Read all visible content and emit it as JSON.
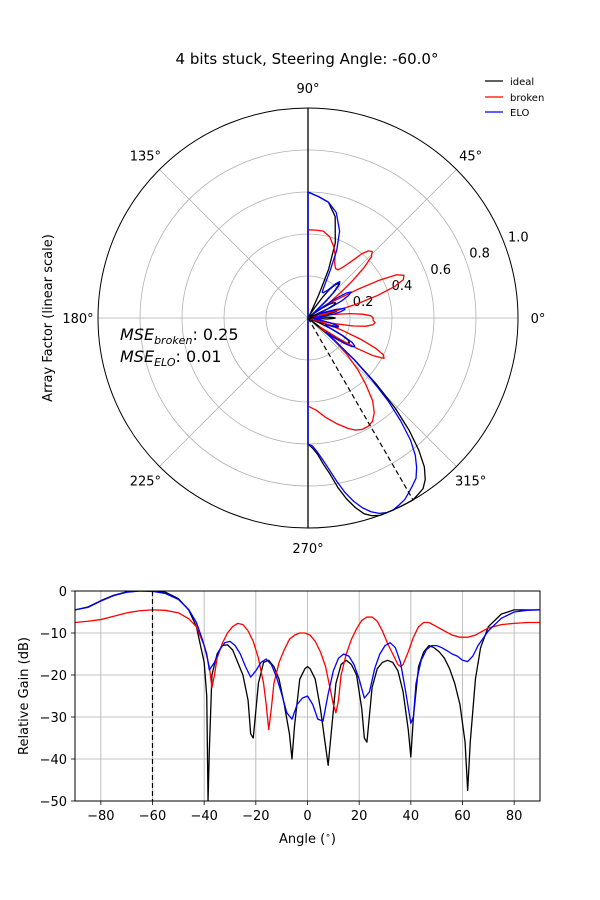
{
  "title": "4 bits stuck, Steering Angle: -60.0°",
  "legend": {
    "placement": "top-right",
    "entries": [
      {
        "label": "ideal",
        "color": "#000000"
      },
      {
        "label": "broken",
        "color": "#ff0000"
      },
      {
        "label": "ELO",
        "color": "#0000ff"
      }
    ]
  },
  "mse": {
    "broken_label": "MSE",
    "broken_sub": "broken",
    "broken_value": ": 0.25",
    "elo_label": "MSE",
    "elo_sub": "ELO",
    "elo_value": ": 0.01"
  },
  "chart_data": [
    {
      "type": "line",
      "subtype": "polar",
      "ylabel": "Array Factor (linear scale)",
      "angle_ticks": [
        "0°",
        "45°",
        "90°",
        "135°",
        "180°",
        "225°",
        "270°",
        "315°"
      ],
      "radial_ticks": [
        "0.2",
        "0.4",
        "0.6",
        "0.8",
        "1.0"
      ],
      "rlim": [
        0,
        1.0
      ],
      "steering_angle_deg": -60,
      "series": [
        {
          "name": "ideal",
          "color": "#000000",
          "theta": [
            -90,
            -88,
            -86,
            -84,
            -82,
            -80,
            -78,
            -76,
            -74,
            -72,
            -70,
            -68,
            -66,
            -64,
            -62,
            -60,
            -58,
            -56,
            -54,
            -52,
            -50,
            -48,
            -46,
            -44,
            -42,
            -40,
            -38.5,
            -37,
            -35,
            -33,
            -31,
            -29,
            -27,
            -25,
            -23,
            -21,
            -19,
            -17,
            -15,
            -13,
            -11,
            -9,
            -7,
            -6,
            -5,
            -3,
            -1,
            0,
            1,
            3,
            5,
            7,
            8,
            9,
            11,
            13,
            15,
            17,
            19,
            21,
            22,
            23,
            25,
            27,
            29,
            31,
            33,
            35,
            37,
            39,
            41,
            43,
            45,
            47,
            49,
            51,
            53,
            55,
            57,
            59,
            61,
            62,
            63,
            65,
            67,
            70,
            75,
            80,
            85,
            90
          ],
          "r": [
            0.6,
            0.62,
            0.65,
            0.7,
            0.75,
            0.82,
            0.88,
            0.93,
            0.97,
            0.99,
            1.0,
            1.0,
            1.0,
            1.0,
            1.0,
            1.0,
            0.99,
            0.98,
            0.95,
            0.9,
            0.82,
            0.72,
            0.6,
            0.45,
            0.3,
            0.12,
            0.0,
            0.12,
            0.18,
            0.22,
            0.23,
            0.22,
            0.18,
            0.12,
            0.05,
            0.02,
            0.08,
            0.14,
            0.15,
            0.12,
            0.07,
            0.03,
            0.01,
            0.0,
            0.02,
            0.09,
            0.12,
            0.13,
            0.12,
            0.09,
            0.04,
            0.01,
            0.0,
            0.02,
            0.1,
            0.14,
            0.14,
            0.11,
            0.06,
            0.02,
            0.01,
            0.02,
            0.1,
            0.14,
            0.15,
            0.14,
            0.12,
            0.08,
            0.04,
            0.01,
            0.04,
            0.12,
            0.17,
            0.21,
            0.22,
            0.2,
            0.17,
            0.12,
            0.06,
            0.02,
            0.003,
            0.01,
            0.03,
            0.12,
            0.25,
            0.38,
            0.5,
            0.56,
            0.58,
            0.6
          ]
        },
        {
          "name": "broken",
          "color": "#ff0000",
          "theta": [
            -90,
            -85,
            -80,
            -75,
            -70,
            -67,
            -64,
            -61,
            -58,
            -55,
            -52,
            -49,
            -46,
            -43,
            -40,
            -38,
            -37,
            -36,
            -34,
            -32,
            -30,
            -28,
            -26,
            -24,
            -22,
            -20,
            -18,
            -16,
            -15,
            -14,
            -12,
            -10,
            -8,
            -6,
            -4,
            -2,
            0,
            2,
            4,
            6,
            8,
            10,
            11,
            12,
            14,
            16,
            18,
            20,
            22,
            24,
            26,
            28,
            30,
            32,
            34,
            35,
            36,
            38,
            40,
            42,
            44,
            46,
            48,
            50,
            52,
            55,
            58,
            61,
            64,
            67,
            70,
            75,
            80,
            85,
            90
          ],
          "r": [
            0.42,
            0.44,
            0.48,
            0.52,
            0.56,
            0.58,
            0.59,
            0.59,
            0.58,
            0.55,
            0.5,
            0.42,
            0.34,
            0.25,
            0.15,
            0.09,
            0.07,
            0.09,
            0.17,
            0.27,
            0.36,
            0.41,
            0.4,
            0.35,
            0.27,
            0.18,
            0.11,
            0.04,
            0.02,
            0.05,
            0.13,
            0.22,
            0.28,
            0.31,
            0.32,
            0.31,
            0.31,
            0.3,
            0.26,
            0.2,
            0.12,
            0.05,
            0.03,
            0.05,
            0.13,
            0.24,
            0.35,
            0.44,
            0.49,
            0.5,
            0.47,
            0.38,
            0.27,
            0.18,
            0.13,
            0.12,
            0.13,
            0.2,
            0.28,
            0.36,
            0.42,
            0.44,
            0.43,
            0.4,
            0.35,
            0.3,
            0.27,
            0.27,
            0.29,
            0.33,
            0.36,
            0.4,
            0.42,
            0.42,
            0.42
          ]
        },
        {
          "name": "ELO",
          "color": "#0000ff",
          "theta": [
            -90,
            -88,
            -86,
            -84,
            -82,
            -80,
            -78,
            -76,
            -74,
            -72,
            -70,
            -68,
            -66,
            -64,
            -62,
            -60,
            -58,
            -56,
            -54,
            -52,
            -50,
            -48,
            -46,
            -44,
            -42,
            -40,
            -38.5,
            -37,
            -35,
            -33,
            -31,
            -29,
            -27,
            -25,
            -23,
            -21,
            -19,
            -17,
            -15,
            -13,
            -11,
            -9,
            -7,
            -6,
            -5,
            -3,
            -1,
            0,
            1,
            3,
            5,
            7,
            8,
            9,
            11,
            13,
            15,
            17,
            19,
            21,
            22,
            23,
            25,
            27,
            29,
            31,
            33,
            35,
            37,
            39,
            41,
            43,
            45,
            47,
            49,
            51,
            53,
            55,
            57,
            59,
            61,
            62,
            63,
            65,
            67,
            70,
            75,
            80,
            85,
            90
          ],
          "r": [
            0.6,
            0.61,
            0.64,
            0.68,
            0.73,
            0.79,
            0.85,
            0.9,
            0.94,
            0.97,
            0.99,
            1.0,
            1.0,
            0.99,
            0.98,
            0.96,
            0.94,
            0.92,
            0.88,
            0.83,
            0.76,
            0.66,
            0.55,
            0.42,
            0.29,
            0.17,
            0.11,
            0.16,
            0.21,
            0.25,
            0.26,
            0.24,
            0.19,
            0.13,
            0.09,
            0.09,
            0.13,
            0.15,
            0.15,
            0.12,
            0.08,
            0.04,
            0.03,
            0.03,
            0.04,
            0.06,
            0.05,
            0.05,
            0.06,
            0.04,
            0.03,
            0.06,
            0.1,
            0.13,
            0.16,
            0.18,
            0.18,
            0.14,
            0.09,
            0.06,
            0.05,
            0.06,
            0.12,
            0.18,
            0.22,
            0.24,
            0.22,
            0.16,
            0.08,
            0.03,
            0.03,
            0.1,
            0.18,
            0.22,
            0.23,
            0.21,
            0.18,
            0.16,
            0.15,
            0.14,
            0.14,
            0.15,
            0.17,
            0.25,
            0.35,
            0.44,
            0.52,
            0.56,
            0.58,
            0.6
          ]
        }
      ]
    },
    {
      "type": "line",
      "xlabel": "Angle ($^\\circ$)",
      "ylabel": "Relative Gain (dB)",
      "xlim": [
        -90,
        90
      ],
      "ylim": [
        -50,
        0
      ],
      "xticks": [
        -80,
        -60,
        -40,
        -20,
        0,
        20,
        40,
        60,
        80
      ],
      "yticks": [
        0,
        -10,
        -20,
        -30,
        -40,
        -50
      ],
      "grid": true,
      "steering_angle_deg": -60,
      "series": [
        {
          "name": "ideal",
          "color": "#000000",
          "x": [
            -90,
            -85,
            -80,
            -75,
            -70,
            -65,
            -60,
            -55,
            -50,
            -46,
            -43,
            -40,
            -39,
            -38.5,
            -38,
            -37,
            -35,
            -33,
            -31,
            -29,
            -27,
            -25,
            -23,
            -22,
            -21,
            -19,
            -17,
            -15,
            -13,
            -11,
            -9,
            -7,
            -6,
            -5,
            -3,
            -1,
            0,
            1,
            3,
            5,
            7,
            8,
            9,
            11,
            13,
            15,
            17,
            19,
            21,
            22,
            23,
            25,
            27,
            29,
            31,
            33,
            35,
            37,
            39,
            40,
            41,
            43,
            45,
            47,
            49,
            51,
            53,
            55,
            57,
            59,
            61,
            62,
            63,
            65,
            67,
            70,
            75,
            80,
            85,
            90
          ],
          "y": [
            -4.5,
            -3.8,
            -2.3,
            -1.0,
            -0.2,
            0,
            0,
            -0.3,
            -1.8,
            -4.5,
            -8.5,
            -17,
            -25,
            -50,
            -38,
            -20,
            -15,
            -13,
            -12.8,
            -14,
            -17,
            -20,
            -26,
            -34,
            -35,
            -22,
            -17,
            -16.5,
            -18,
            -21,
            -27,
            -34,
            -40,
            -32,
            -21,
            -18.5,
            -18,
            -18.5,
            -21,
            -28,
            -37,
            -41.5,
            -35,
            -22,
            -17.5,
            -16.5,
            -17.5,
            -20,
            -28,
            -35,
            -36,
            -23,
            -18.5,
            -17,
            -16.5,
            -17,
            -19,
            -24,
            -33,
            -39.5,
            -30,
            -18,
            -14.5,
            -13,
            -13.5,
            -14.5,
            -16,
            -18.5,
            -22,
            -27,
            -36,
            -47.5,
            -36,
            -21,
            -13.5,
            -8.5,
            -5.5,
            -4.5,
            -4.5,
            -4.5
          ]
        },
        {
          "name": "broken",
          "color": "#ff0000",
          "x": [
            -90,
            -85,
            -80,
            -75,
            -70,
            -65,
            -60,
            -55,
            -50,
            -46,
            -43,
            -40,
            -38,
            -37,
            -36,
            -35,
            -33,
            -31,
            -29,
            -27,
            -25,
            -23,
            -21,
            -19,
            -17,
            -16,
            -15,
            -14,
            -13,
            -11,
            -9,
            -7,
            -5,
            -3,
            -1,
            1,
            3,
            5,
            7,
            9,
            10,
            11,
            12,
            13,
            15,
            17,
            19,
            21,
            23,
            25,
            27,
            29,
            31,
            33,
            35,
            36,
            37,
            39,
            41,
            43,
            45,
            47,
            50,
            53,
            56,
            59,
            62,
            65,
            70,
            75,
            80,
            85,
            90
          ],
          "y": [
            -7.5,
            -7.2,
            -6.8,
            -6.0,
            -5.2,
            -4.7,
            -4.5,
            -4.6,
            -5.2,
            -6.6,
            -8.5,
            -13,
            -18,
            -23,
            -20,
            -16,
            -12.5,
            -10,
            -8.5,
            -7.7,
            -8.0,
            -9.5,
            -12,
            -16,
            -22,
            -27,
            -33,
            -28,
            -22,
            -17,
            -14,
            -11.5,
            -10.5,
            -10,
            -10,
            -10.5,
            -12,
            -14.5,
            -18,
            -24,
            -27,
            -29,
            -26,
            -20,
            -15,
            -11.5,
            -9,
            -7,
            -6.2,
            -6.2,
            -7.2,
            -9.5,
            -12.5,
            -15,
            -17.5,
            -18,
            -17.5,
            -14.5,
            -11,
            -8.5,
            -7.5,
            -7.5,
            -8.5,
            -9.5,
            -10.5,
            -11,
            -11,
            -10.5,
            -8.8,
            -8.0,
            -7.7,
            -7.5,
            -7.5
          ]
        },
        {
          "name": "ELO",
          "color": "#0000ff",
          "x": [
            -90,
            -85,
            -80,
            -75,
            -70,
            -65,
            -60,
            -55,
            -50,
            -46,
            -43,
            -41,
            -39,
            -38,
            -36,
            -34,
            -32,
            -30,
            -28,
            -26,
            -24,
            -22,
            -20,
            -18,
            -16,
            -14,
            -12,
            -10,
            -8,
            -6,
            -4,
            -2,
            0,
            2,
            4,
            6,
            8,
            10,
            12,
            14,
            16,
            18,
            20,
            22,
            24,
            26,
            28,
            30,
            32,
            34,
            36,
            38,
            40,
            41,
            42,
            44,
            46,
            48,
            50,
            52,
            54,
            56,
            58,
            60,
            62,
            64,
            66,
            70,
            75,
            80,
            85,
            90
          ],
          "y": [
            -4.5,
            -3.9,
            -2.4,
            -1.1,
            -0.3,
            0,
            -0.1,
            -0.6,
            -2.0,
            -4.4,
            -7.5,
            -11,
            -15,
            -18.8,
            -17,
            -14,
            -12.3,
            -12,
            -13,
            -15,
            -18,
            -20.5,
            -19,
            -17,
            -16.2,
            -17.5,
            -20.5,
            -24.5,
            -29,
            -30.5,
            -27,
            -25.5,
            -25,
            -27,
            -30.5,
            -31,
            -24.5,
            -19,
            -16,
            -15,
            -15.5,
            -17.5,
            -21,
            -25.5,
            -24,
            -18.5,
            -15,
            -13,
            -12.3,
            -13.5,
            -17,
            -24,
            -31.5,
            -30,
            -22,
            -16.5,
            -14,
            -13,
            -13,
            -13.5,
            -14.2,
            -15,
            -15.5,
            -16.5,
            -16.8,
            -15.5,
            -13,
            -9.5,
            -6.5,
            -5,
            -4.6,
            -4.5
          ]
        }
      ]
    }
  ]
}
